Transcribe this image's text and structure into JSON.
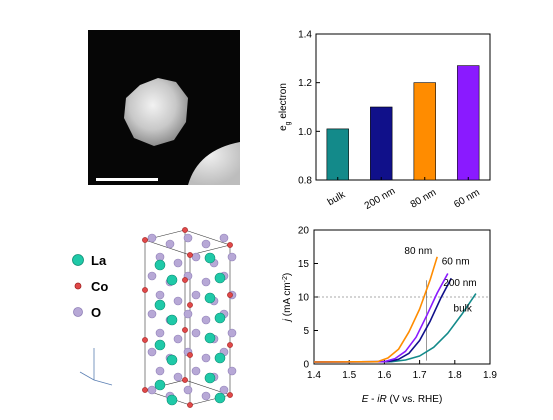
{
  "charts": [
    {
      "type": "bar",
      "categories": [
        "bulk",
        "200 nm",
        "80 nm",
        "60 nm"
      ],
      "values": [
        1.01,
        1.1,
        1.2,
        1.27
      ],
      "colors": [
        "#138a8a",
        "#10108a",
        "#ff8c00",
        "#8a1aff"
      ],
      "xlabel": "",
      "ylabel_main": "e",
      "ylabel_sub": "g",
      "ylabel_rest": " electron",
      "ylim": [
        0.8,
        1.4
      ],
      "yticks": [
        0.8,
        1.0,
        1.2,
        1.4
      ],
      "ytick_labels": [
        "0.8",
        "1.0",
        "1.2",
        "1.4"
      ],
      "grid": false
    },
    {
      "type": "line",
      "xlabel_parts": [
        "E",
        " - ",
        "iR",
        " (V vs. RHE)"
      ],
      "ylabel_parts": [
        "j",
        " (mA cm",
        "-2",
        ")"
      ],
      "xlim": [
        1.4,
        1.9
      ],
      "ylim": [
        0,
        20
      ],
      "xticks": [
        1.4,
        1.5,
        1.6,
        1.7,
        1.8,
        1.9
      ],
      "xtick_labels": [
        "1.4",
        "1.5",
        "1.6",
        "1.7",
        "1.8",
        "1.9"
      ],
      "yticks": [
        0,
        5,
        10,
        15,
        20
      ],
      "ytick_labels": [
        "0",
        "5",
        "10",
        "15",
        "20"
      ],
      "reference_line_y": 10,
      "reference_line_x": 1.72,
      "series": [
        {
          "name": "bulk",
          "color": "#138a8a",
          "x": [
            1.4,
            1.62,
            1.66,
            1.7,
            1.74,
            1.78,
            1.82,
            1.86
          ],
          "y": [
            0.3,
            0.35,
            0.6,
            1.2,
            2.5,
            4.6,
            7.4,
            10.5
          ]
        },
        {
          "name": "200 nm",
          "color": "#10108a",
          "x": [
            1.4,
            1.61,
            1.64,
            1.67,
            1.7,
            1.73,
            1.76,
            1.79
          ],
          "y": [
            0.3,
            0.35,
            0.7,
            1.6,
            3.5,
            6.4,
            9.8,
            12.8
          ]
        },
        {
          "name": "60 nm",
          "color": "#8a1aff",
          "x": [
            1.4,
            1.6,
            1.63,
            1.66,
            1.69,
            1.72,
            1.75,
            1.78
          ],
          "y": [
            0.3,
            0.35,
            0.8,
            1.9,
            4.0,
            7.2,
            10.6,
            13.5
          ]
        },
        {
          "name": "80 nm",
          "color": "#ff8c00",
          "x": [
            1.4,
            1.58,
            1.61,
            1.64,
            1.67,
            1.7,
            1.73,
            1.75
          ],
          "y": [
            0.3,
            0.35,
            0.9,
            2.2,
            4.8,
            8.2,
            12.6,
            16.0
          ]
        }
      ],
      "grid": false
    }
  ],
  "legend": [
    {
      "label": "La",
      "color": "#1fc9a8"
    },
    {
      "label": "Co",
      "color": "#e04848"
    },
    {
      "label": "O",
      "color": "#b7a8d6"
    }
  ]
}
